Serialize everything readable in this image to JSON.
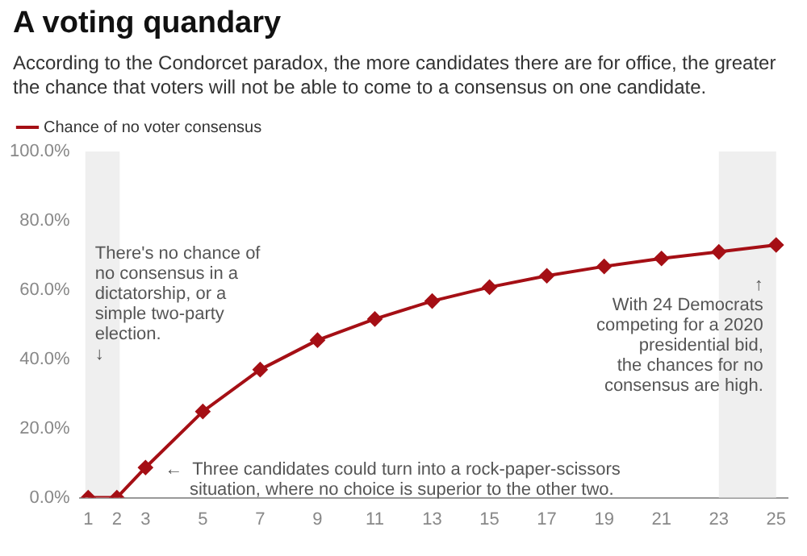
{
  "chart_data": {
    "type": "line",
    "title": "A voting quandary",
    "subtitle": "According to the Condorcet paradox, the more candidates there are for office, the greater the chance that voters will not be able to come to a consensus on one candidate.",
    "x": [
      1,
      2,
      3,
      5,
      7,
      9,
      11,
      13,
      15,
      17,
      19,
      21,
      23,
      25
    ],
    "series": [
      {
        "name": "Chance of no voter consensus",
        "color": "#a50f15",
        "values": [
          0,
          0,
          8.7,
          24.9,
          37.0,
          45.5,
          51.6,
          56.8,
          60.8,
          64.1,
          66.8,
          69.1,
          71.0,
          73.0
        ]
      }
    ],
    "xlim": [
      0.7,
      25.4
    ],
    "xticks": [
      1,
      2,
      3,
      5,
      7,
      9,
      11,
      13,
      15,
      17,
      19,
      21,
      23,
      25
    ],
    "ylim": [
      0,
      100
    ],
    "yticks": [
      {
        "value": 0,
        "label": "0.0%"
      },
      {
        "value": 20,
        "label": "20.0%"
      },
      {
        "value": 40,
        "label": "40.0%"
      },
      {
        "value": 60,
        "label": "60.0%"
      },
      {
        "value": 80,
        "label": "80.0%"
      },
      {
        "value": 100,
        "label": "100.0%"
      }
    ],
    "bands": [
      {
        "axis": "x",
        "from": 0.9,
        "to": 2.1,
        "color": "#efefef",
        "label": "There's no chance of\nno consensus in a\ndictatorship, or a\nsimple two-party\nelection.\n↓"
      },
      {
        "axis": "x",
        "from": 23,
        "to": 25,
        "color": "#efefef",
        "label": "↑\nWith 24 Democrats\ncompeting for a 2020\npresidential bid,\nthe chances for no\nconsensus are high."
      }
    ],
    "annotations": [
      {
        "text": "←  Three candidates could turn into a rock-paper-scissors\n     situation, where no choice is superior to the other two.",
        "x": 3,
        "y": 8.7
      }
    ],
    "marker": "diamond",
    "line_style": "solid",
    "grid": false,
    "legend": "top left"
  }
}
